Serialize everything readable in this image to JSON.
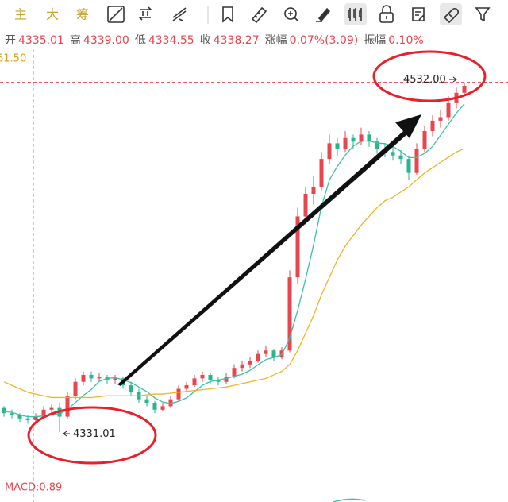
{
  "toolbar": {
    "tabs": [
      "主",
      "大",
      "筹"
    ]
  },
  "info_bar": [
    {
      "label": "开",
      "value": "4335.01"
    },
    {
      "label": "高",
      "value": "4339.00"
    },
    {
      "label": "低",
      "value": "4334.55"
    },
    {
      "label": "收",
      "value": "4338.27"
    },
    {
      "label": "涨幅",
      "value": "0.07%(3.09)"
    },
    {
      "label": "振幅",
      "value": "0.10%"
    }
  ],
  "chart_data": {
    "type": "candlestick",
    "axis_label": "61.50",
    "ylim": [
      4291,
      4551
    ],
    "up_color": "#e8454e",
    "down_color": "#27b58a",
    "candles": [
      [
        4345,
        4346,
        4340,
        4342
      ],
      [
        4342,
        4344,
        4339,
        4341
      ],
      [
        4341,
        4342,
        4337,
        4339
      ],
      [
        4339,
        4341,
        4336,
        4338
      ],
      [
        4338,
        4342,
        4337,
        4340
      ],
      [
        4340,
        4346,
        4339,
        4344
      ],
      [
        4344,
        4347,
        4341,
        4345
      ],
      [
        4345,
        4348,
        4331.01,
        4340
      ],
      [
        4340,
        4354,
        4339,
        4352
      ],
      [
        4352,
        4362,
        4350,
        4360
      ],
      [
        4360,
        4366,
        4358,
        4364
      ],
      [
        4364,
        4366,
        4360,
        4362
      ],
      [
        4362,
        4365,
        4360,
        4363
      ],
      [
        4363,
        4364,
        4359,
        4361
      ],
      [
        4361,
        4364,
        4359,
        4362
      ],
      [
        4362,
        4363,
        4356,
        4358
      ],
      [
        4358,
        4360,
        4352,
        4354
      ],
      [
        4354,
        4356,
        4348,
        4350
      ],
      [
        4350,
        4352,
        4346,
        4348
      ],
      [
        4348,
        4349,
        4342,
        4344
      ],
      [
        4344,
        4348,
        4343,
        4346
      ],
      [
        4346,
        4352,
        4345,
        4350
      ],
      [
        4350,
        4358,
        4349,
        4356
      ],
      [
        4356,
        4360,
        4354,
        4358
      ],
      [
        4358,
        4364,
        4357,
        4362
      ],
      [
        4362,
        4366,
        4360,
        4364
      ],
      [
        4364,
        4365,
        4359,
        4361
      ],
      [
        4361,
        4363,
        4358,
        4360
      ],
      [
        4360,
        4365,
        4359,
        4363
      ],
      [
        4363,
        4370,
        4362,
        4368
      ],
      [
        4368,
        4372,
        4366,
        4370
      ],
      [
        4370,
        4374,
        4368,
        4372
      ],
      [
        4372,
        4378,
        4371,
        4376
      ],
      [
        4376,
        4381,
        4374,
        4378
      ],
      [
        4378,
        4379,
        4372,
        4374
      ],
      [
        4374,
        4380,
        4373,
        4378
      ],
      [
        4378,
        4424,
        4377,
        4420
      ],
      [
        4420,
        4460,
        4416,
        4455
      ],
      [
        4455,
        4472,
        4450,
        4468
      ],
      [
        4468,
        4478,
        4462,
        4472
      ],
      [
        4472,
        4492,
        4470,
        4488
      ],
      [
        4488,
        4502,
        4485,
        4497
      ],
      [
        4497,
        4500,
        4490,
        4494
      ],
      [
        4494,
        4504,
        4492,
        4500
      ],
      [
        4500,
        4502,
        4494,
        4498
      ],
      [
        4498,
        4506,
        4496,
        4502
      ],
      [
        4502,
        4504,
        4495,
        4498
      ],
      [
        4498,
        4500,
        4491,
        4494
      ],
      [
        4494,
        4497,
        4489,
        4492
      ],
      [
        4492,
        4495,
        4487,
        4490
      ],
      [
        4490,
        4493,
        4485,
        4488
      ],
      [
        4488,
        4490,
        4476,
        4480
      ],
      [
        4480,
        4497,
        4479,
        4494
      ],
      [
        4494,
        4507,
        4492,
        4504
      ],
      [
        4504,
        4513,
        4501,
        4510
      ],
      [
        4510,
        4516,
        4506,
        4512
      ],
      [
        4512,
        4524,
        4510,
        4520
      ],
      [
        4520,
        4529,
        4517,
        4526
      ],
      [
        4526,
        4532,
        4524,
        4530
      ]
    ],
    "lines": [
      {
        "color": "#3cc0a8",
        "values": [
          4343,
          4342.5,
          4341,
          4340,
          4340,
          4340.4,
          4341.2,
          4341.4,
          4344.2,
          4348.2,
          4352.2,
          4355.6,
          4360.2,
          4362,
          4362.4,
          4361.2,
          4359.6,
          4357,
          4354.4,
          4350.8,
          4348.4,
          4347.6,
          4348.8,
          4350.8,
          4354.4,
          4358,
          4360.2,
          4361,
          4362,
          4363.2,
          4364.4,
          4366.6,
          4369.8,
          4372.8,
          4374,
          4375.6,
          4385.2,
          4401,
          4419,
          4438.6,
          4460.6,
          4476,
          4483.8,
          4490.2,
          4495.4,
          4498.2,
          4498.4,
          4497.2,
          4496.8,
          4495.2,
          4492.4,
          4488.8,
          4488.8,
          4491.2,
          4495.2,
          4501.6,
          4508,
          4514.4,
          4519.6
        ]
      },
      {
        "color": "#f0b429",
        "values": [
          4360,
          4358,
          4356,
          4354,
          4353,
          4352,
          4351,
          4351,
          4351,
          4351,
          4351,
          4351,
          4351.5,
          4352,
          4352,
          4352,
          4352,
          4352,
          4352.5,
          4353,
          4353,
          4353.5,
          4354,
          4354.5,
          4355,
          4355.5,
          4356,
          4356.5,
          4357,
          4358,
          4359,
          4360,
          4361,
          4362,
          4364,
          4366,
          4370,
          4378,
          4388,
          4398,
          4410,
          4420,
          4430,
          4438,
          4444,
          4450,
          4455,
          4460,
          4464,
          4466,
          4469,
          4472,
          4476,
          4480,
          4483,
          4486,
          4489,
          4492,
          4494
        ]
      }
    ],
    "high_marker": {
      "value": 4532,
      "label": "4532.00"
    },
    "low_marker": {
      "value": 4331.01,
      "label": "4331.01"
    },
    "indicator_label": "MACD:0.89"
  }
}
